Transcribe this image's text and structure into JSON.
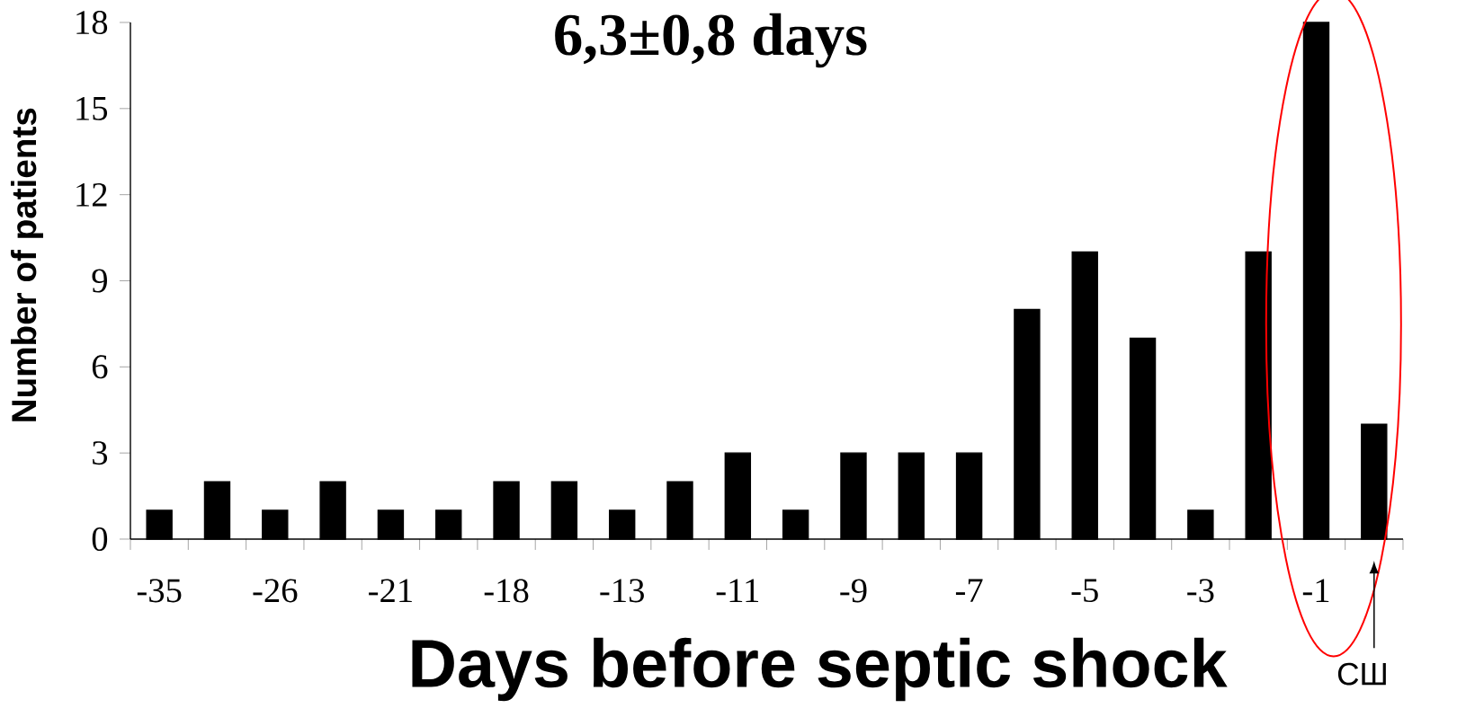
{
  "chart_data": {
    "type": "bar",
    "title": "6,3±0,8 days",
    "xlabel": "Days before septic shock",
    "ylabel": "Number of patients",
    "categories": [
      "-35",
      null,
      "-26",
      null,
      "-21",
      null,
      "-18",
      null,
      "-13",
      null,
      "-11",
      null,
      "-9",
      null,
      "-7",
      null,
      "-5",
      null,
      "-3",
      null,
      "-1",
      null
    ],
    "values": [
      1,
      2,
      1,
      2,
      1,
      1,
      2,
      2,
      1,
      2,
      3,
      1,
      3,
      3,
      3,
      8,
      10,
      7,
      1,
      10,
      18,
      4
    ],
    "color": "#000000",
    "ylim": [
      0,
      18
    ],
    "yticks": [
      0,
      3,
      6,
      9,
      12,
      15,
      18
    ],
    "grid": false,
    "annotations": [
      "СШ"
    ]
  }
}
